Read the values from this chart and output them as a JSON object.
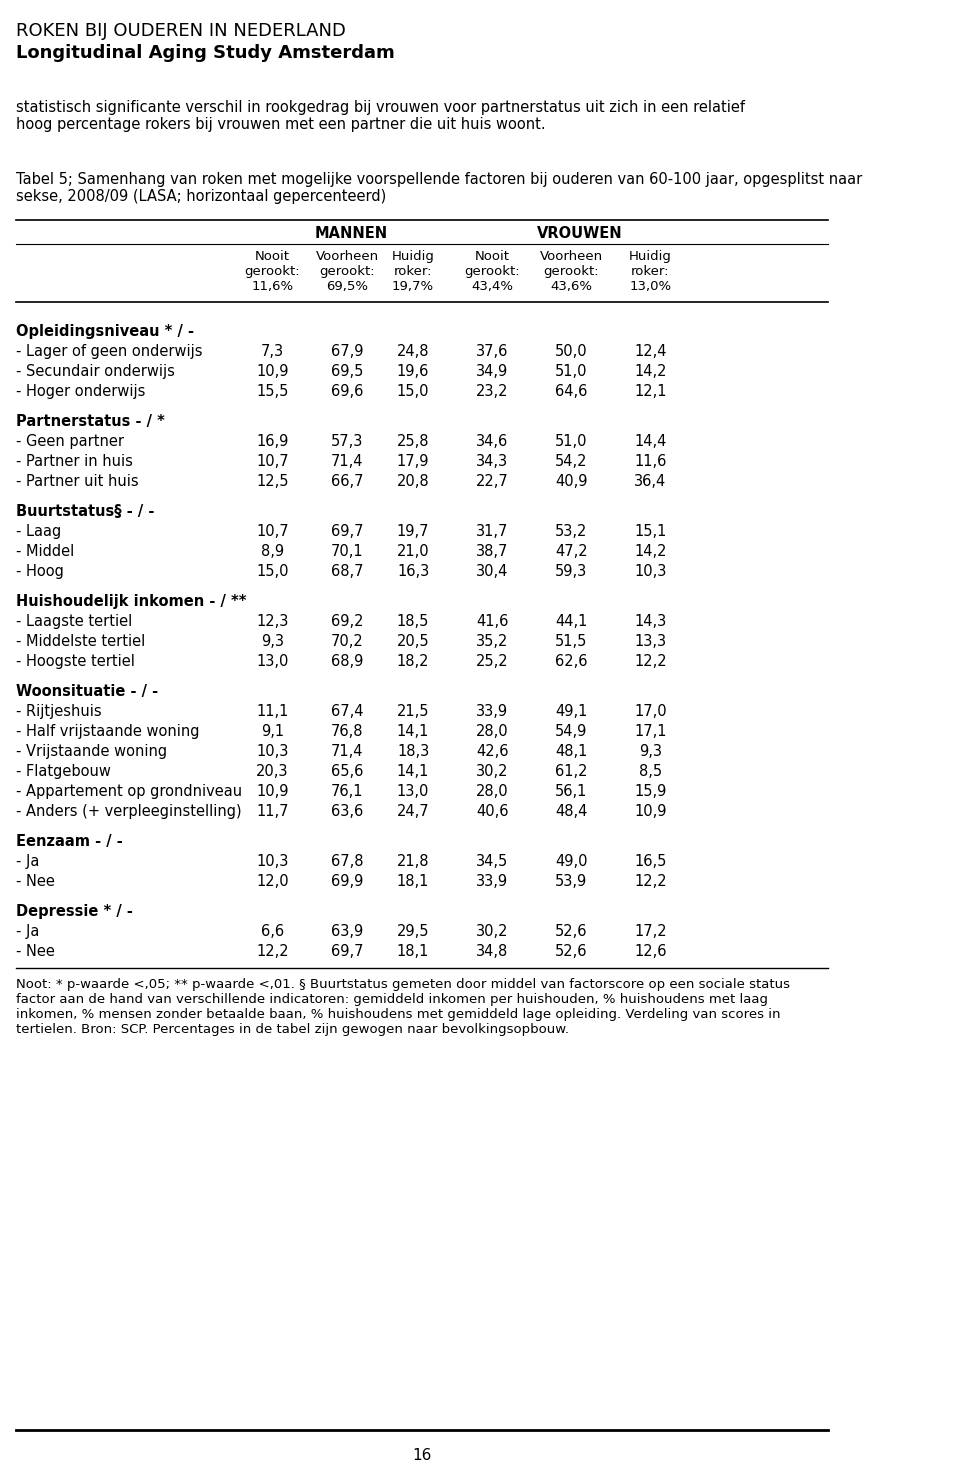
{
  "title_line1": "ROKEN BIJ OUDEREN IN NEDERLAND",
  "title_line2": "Longitudinal Aging Study Amsterdam",
  "intro_text": "statistisch significante verschil in rookgedrag bij vrouwen voor partnerstatus uit zich in een relatief\nhoog percentage rokers bij vrouwen met een partner die uit huis woont.",
  "table_caption": "Tabel 5; Samenhang van roken met mogelijke voorspellende factoren bij ouderen van 60-100 jaar, opgesplitst naar\nsekse, 2008/09 (LASA; horizontaal gepercenteerd)",
  "col_headers_top": [
    "MANNEN",
    "VROUWEN"
  ],
  "col_headers_sub": [
    [
      "Nooit\ngerookt:\n11,6%",
      "Voorheen\ngerookt:\n69,5%",
      "Huidig\nroker:\n19,7%"
    ],
    [
      "Nooit\ngerookt:\n43,4%",
      "Voorheen\ngerookt:\n43,6%",
      "Huidig\nroker:\n13,0%"
    ]
  ],
  "sections": [
    {
      "header": "Opleidingsniveau * / -",
      "rows": [
        [
          "- Lager of geen onderwijs",
          "7,3",
          "67,9",
          "24,8",
          "37,6",
          "50,0",
          "12,4"
        ],
        [
          "- Secundair onderwijs",
          "10,9",
          "69,5",
          "19,6",
          "34,9",
          "51,0",
          "14,2"
        ],
        [
          "- Hoger onderwijs",
          "15,5",
          "69,6",
          "15,0",
          "23,2",
          "64,6",
          "12,1"
        ]
      ]
    },
    {
      "header": "Partnerstatus - / *",
      "rows": [
        [
          "- Geen partner",
          "16,9",
          "57,3",
          "25,8",
          "34,6",
          "51,0",
          "14,4"
        ],
        [
          "- Partner in huis",
          "10,7",
          "71,4",
          "17,9",
          "34,3",
          "54,2",
          "11,6"
        ],
        [
          "- Partner uit huis",
          "12,5",
          "66,7",
          "20,8",
          "22,7",
          "40,9",
          "36,4"
        ]
      ]
    },
    {
      "header": "Buurtstatus§ - / -",
      "rows": [
        [
          "- Laag",
          "10,7",
          "69,7",
          "19,7",
          "31,7",
          "53,2",
          "15,1"
        ],
        [
          "- Middel",
          "8,9",
          "70,1",
          "21,0",
          "38,7",
          "47,2",
          "14,2"
        ],
        [
          "- Hoog",
          "15,0",
          "68,7",
          "16,3",
          "30,4",
          "59,3",
          "10,3"
        ]
      ]
    },
    {
      "header": "Huishoudelijk inkomen - / **",
      "rows": [
        [
          "- Laagste tertiel",
          "12,3",
          "69,2",
          "18,5",
          "41,6",
          "44,1",
          "14,3"
        ],
        [
          "- Middelste tertiel",
          "9,3",
          "70,2",
          "20,5",
          "35,2",
          "51,5",
          "13,3"
        ],
        [
          "- Hoogste tertiel",
          "13,0",
          "68,9",
          "18,2",
          "25,2",
          "62,6",
          "12,2"
        ]
      ]
    },
    {
      "header": "Woonsituatie - / -",
      "rows": [
        [
          "- Rijtjeshuis",
          "11,1",
          "67,4",
          "21,5",
          "33,9",
          "49,1",
          "17,0"
        ],
        [
          "- Half vrijstaande woning",
          "9,1",
          "76,8",
          "14,1",
          "28,0",
          "54,9",
          "17,1"
        ],
        [
          "- Vrijstaande woning",
          "10,3",
          "71,4",
          "18,3",
          "42,6",
          "48,1",
          "9,3"
        ],
        [
          "- Flatgebouw",
          "20,3",
          "65,6",
          "14,1",
          "30,2",
          "61,2",
          "8,5"
        ],
        [
          "- Appartement op grondniveau",
          "10,9",
          "76,1",
          "13,0",
          "28,0",
          "56,1",
          "15,9"
        ],
        [
          "- Anders (+ verpleeginstelling)",
          "11,7",
          "63,6",
          "24,7",
          "40,6",
          "48,4",
          "10,9"
        ]
      ]
    },
    {
      "header": "Eenzaam - / -",
      "rows": [
        [
          "- Ja",
          "10,3",
          "67,8",
          "21,8",
          "34,5",
          "49,0",
          "16,5"
        ],
        [
          "- Nee",
          "12,0",
          "69,9",
          "18,1",
          "33,9",
          "53,9",
          "12,2"
        ]
      ]
    },
    {
      "header": "Depressie * / -",
      "rows": [
        [
          "- Ja",
          "6,6",
          "63,9",
          "29,5",
          "30,2",
          "52,6",
          "17,2"
        ],
        [
          "- Nee",
          "12,2",
          "69,7",
          "18,1",
          "34,8",
          "52,6",
          "12,6"
        ]
      ]
    }
  ],
  "footnote": "Noot: * p-waarde <,05; ** p-waarde <,01. § Buurtstatus gemeten door middel van factorscore op een sociale status\nfactor aan de hand van verschillende indicatoren: gemiddeld inkomen per huishouden, % huishoudens met laag\ninkomen, % mensen zonder betaalde baan, % huishoudens met gemiddeld lage opleiding. Verdeling van scores in\ntertielen. Bron: SCP. Percentages in de tabel zijn gewogen naar bevolkingsopbouw.",
  "page_number": "16"
}
